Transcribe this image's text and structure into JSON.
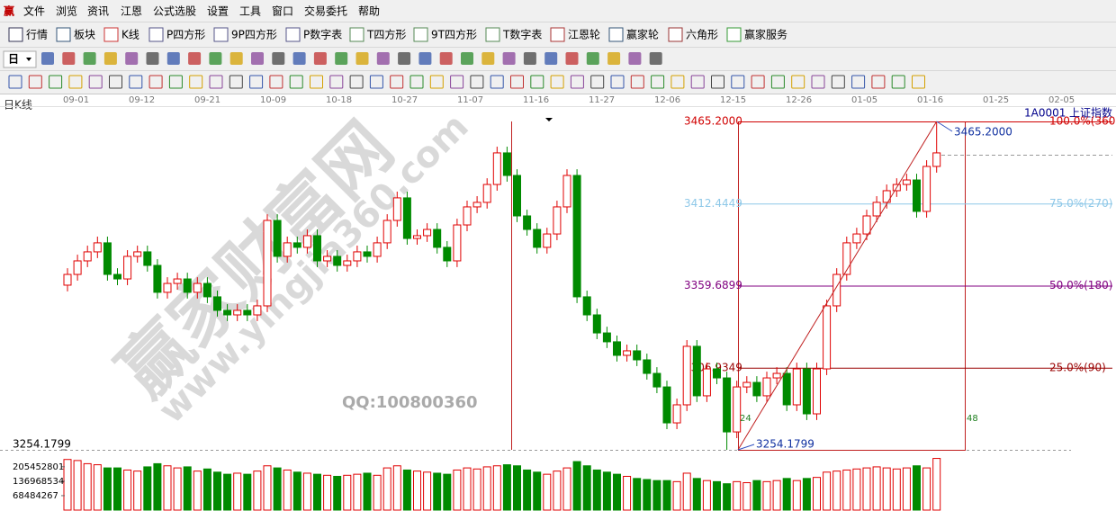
{
  "menu": [
    "文件",
    "浏览",
    "资讯",
    "江恩",
    "公式选股",
    "设置",
    "工具",
    "窗口",
    "交易委托",
    "帮助"
  ],
  "logo": "赢",
  "toolbar": [
    "行情",
    "板块",
    "K线",
    "P四方形",
    "9P四方形",
    "P数字表",
    "T四方形",
    "9T四方形",
    "T数字表",
    "江恩轮",
    "赢家轮",
    "六角形",
    "赢家服务"
  ],
  "period": "日",
  "chart_label": "日K线",
  "symbol": "1A0001",
  "symbol_name": "上证指数",
  "dates": [
    "09-01",
    "09-12",
    "09-21",
    "10-09",
    "10-18",
    "10-27",
    "11-07",
    "11-16",
    "11-27",
    "12-06",
    "12-15",
    "12-26",
    "01-05",
    "01-16",
    "01-25",
    "02-05"
  ],
  "watermark": {
    "site": "赢家财富网",
    "url": "www.yingjia360.com",
    "qq": "QQ:100800360"
  },
  "chart_data": [
    {
      "type": "candlestick",
      "up_color": "#e00000",
      "down_color": "#008a00",
      "ylim": [
        3254.1799,
        3465.2
      ],
      "yticks": [
        {
          "value": 3465.2,
          "label": "3465.2000"
        },
        3412.4449,
        3359.6899,
        3306.9349
      ],
      "level_labels": [
        "100.0%(360)",
        "75.0%(270)",
        "50.0%(180)",
        "25.0%(90)"
      ],
      "level_colors": [
        "#d00000",
        "#8ec8e8",
        "#800080",
        "#990000"
      ],
      "bottom_label": {
        "value": 3254.1799,
        "label": "3254.1799"
      },
      "annotations": {
        "high": "3465.2000",
        "low": "3254.1799",
        "start_count": "24",
        "end_count": "48"
      },
      "open": [
        3360.0,
        3366.9,
        3375.6,
        3381.4,
        3387.2,
        3366.9,
        3364.0,
        3378.5,
        3381.4,
        3372.7,
        3355.4,
        3361.1,
        3364.0,
        3355.4,
        3361.1,
        3352.5,
        3343.8,
        3340.9,
        3343.8,
        3340.9,
        3346.7,
        3401.6,
        3378.5,
        3387.2,
        3384.3,
        3391.8,
        3375.6,
        3378.5,
        3372.7,
        3375.6,
        3381.4,
        3378.5,
        3387.2,
        3401.6,
        3416.1,
        3390.0,
        3391.8,
        3395.8,
        3384.3,
        3375.6,
        3398.7,
        3410.3,
        3413.2,
        3424.7,
        3445.0,
        3430.5,
        3404.5,
        3395.8,
        3384.3,
        3392.9,
        3410.3,
        3430.5,
        3352.5,
        3340.9,
        3329.3,
        3323.6,
        3314.9,
        3317.8,
        3312.0,
        3303.3,
        3294.6,
        3271.5,
        3283.1,
        3320.7,
        3288.9,
        3306.2,
        3300.4,
        3265.7,
        3294.6,
        3297.5,
        3288.9,
        3300.4,
        3303.3,
        3283.1,
        3306.2,
        3277.3,
        3306.2,
        3346.7,
        3366.9,
        3387.2,
        3392.9,
        3404.5,
        3413.2,
        3420.7,
        3424.7,
        3427.6,
        3407.4,
        3436.3
      ],
      "high": [
        3370.9,
        3379.6,
        3385.4,
        3391.2,
        3391.2,
        3370.9,
        3382.5,
        3385.4,
        3385.4,
        3376.7,
        3365.1,
        3368.0,
        3368.0,
        3365.1,
        3365.1,
        3356.5,
        3347.8,
        3347.8,
        3347.8,
        3350.7,
        3405.6,
        3405.6,
        3391.2,
        3391.2,
        3395.8,
        3395.8,
        3382.5,
        3382.5,
        3379.6,
        3385.4,
        3385.4,
        3391.2,
        3405.6,
        3420.1,
        3420.1,
        3395.8,
        3399.8,
        3399.8,
        3388.3,
        3402.7,
        3414.3,
        3417.2,
        3428.7,
        3449.0,
        3449.0,
        3434.5,
        3408.5,
        3399.8,
        3396.9,
        3414.3,
        3434.5,
        3434.5,
        3356.5,
        3344.9,
        3333.3,
        3327.6,
        3321.8,
        3321.8,
        3316.0,
        3307.3,
        3298.6,
        3287.1,
        3324.7,
        3324.7,
        3310.2,
        3310.2,
        3304.4,
        3298.6,
        3301.5,
        3301.5,
        3304.4,
        3307.3,
        3307.3,
        3310.2,
        3310.2,
        3310.2,
        3350.7,
        3370.9,
        3391.2,
        3396.9,
        3408.5,
        3417.2,
        3424.7,
        3428.7,
        3431.6,
        3431.6,
        3440.3,
        3465.2
      ],
      "low": [
        3356.0,
        3362.9,
        3371.6,
        3377.4,
        3362.9,
        3360.0,
        3360.0,
        3374.5,
        3368.7,
        3351.4,
        3351.4,
        3357.1,
        3351.4,
        3351.4,
        3348.5,
        3339.8,
        3336.9,
        3336.9,
        3336.9,
        3336.9,
        3342.7,
        3374.5,
        3374.5,
        3380.3,
        3380.3,
        3371.6,
        3371.6,
        3368.7,
        3368.7,
        3371.6,
        3374.5,
        3374.5,
        3383.2,
        3397.6,
        3386.0,
        3386.0,
        3387.8,
        3380.3,
        3371.6,
        3371.6,
        3394.7,
        3406.3,
        3409.2,
        3420.7,
        3426.5,
        3400.5,
        3391.8,
        3380.3,
        3380.3,
        3388.9,
        3406.3,
        3348.5,
        3336.9,
        3325.3,
        3319.6,
        3310.9,
        3310.9,
        3308.0,
        3299.3,
        3290.6,
        3267.5,
        3267.5,
        3279.1,
        3284.9,
        3284.9,
        3296.4,
        3254.1799,
        3261.7,
        3290.6,
        3284.9,
        3284.9,
        3296.4,
        3279.1,
        3279.1,
        3273.3,
        3273.3,
        3302.2,
        3342.7,
        3362.9,
        3383.2,
        3388.9,
        3400.5,
        3409.2,
        3416.7,
        3420.7,
        3403.4,
        3403.4,
        3432.3
      ],
      "close": [
        3366.9,
        3375.6,
        3381.4,
        3387.2,
        3366.9,
        3364.0,
        3378.5,
        3381.4,
        3372.7,
        3355.4,
        3361.1,
        3364.0,
        3355.4,
        3361.1,
        3352.5,
        3343.8,
        3340.9,
        3343.8,
        3340.9,
        3346.7,
        3401.6,
        3378.5,
        3387.2,
        3384.3,
        3391.8,
        3375.6,
        3378.5,
        3372.7,
        3375.6,
        3381.4,
        3378.5,
        3387.2,
        3401.6,
        3416.1,
        3390.0,
        3391.8,
        3395.8,
        3384.3,
        3375.6,
        3398.7,
        3410.3,
        3413.2,
        3424.7,
        3445.0,
        3430.5,
        3404.5,
        3395.8,
        3384.3,
        3392.9,
        3410.3,
        3430.5,
        3352.5,
        3340.9,
        3329.3,
        3323.6,
        3314.9,
        3317.8,
        3312.0,
        3303.3,
        3294.6,
        3271.5,
        3283.1,
        3320.7,
        3288.9,
        3306.2,
        3300.4,
        3265.7,
        3294.6,
        3297.5,
        3288.9,
        3300.4,
        3303.3,
        3283.1,
        3306.2,
        3277.3,
        3306.2,
        3346.7,
        3366.9,
        3387.2,
        3392.9,
        3404.5,
        3413.2,
        3420.7,
        3424.7,
        3427.6,
        3407.4,
        3436.3,
        3445.0
      ]
    },
    {
      "type": "bar",
      "ylim": [
        0,
        290000000
      ],
      "yticks": [
        68484267,
        136968534,
        205452801
      ],
      "values": [
        240000000,
        235000000,
        220000000,
        215000000,
        200000000,
        200000000,
        190000000,
        185000000,
        205000000,
        220000000,
        210000000,
        200000000,
        205000000,
        185000000,
        195000000,
        180000000,
        170000000,
        175000000,
        170000000,
        185000000,
        210000000,
        200000000,
        190000000,
        180000000,
        175000000,
        170000000,
        165000000,
        160000000,
        165000000,
        170000000,
        175000000,
        165000000,
        200000000,
        210000000,
        190000000,
        185000000,
        180000000,
        175000000,
        170000000,
        190000000,
        200000000,
        195000000,
        205000000,
        210000000,
        215000000,
        210000000,
        190000000,
        180000000,
        170000000,
        185000000,
        200000000,
        230000000,
        210000000,
        190000000,
        180000000,
        170000000,
        160000000,
        150000000,
        145000000,
        140000000,
        140000000,
        135000000,
        175000000,
        150000000,
        140000000,
        135000000,
        125000000,
        135000000,
        130000000,
        140000000,
        135000000,
        140000000,
        150000000,
        140000000,
        150000000,
        155000000,
        180000000,
        185000000,
        190000000,
        195000000,
        200000000,
        205000000,
        200000000,
        195000000,
        200000000,
        210000000,
        200000000,
        245000000
      ]
    }
  ]
}
